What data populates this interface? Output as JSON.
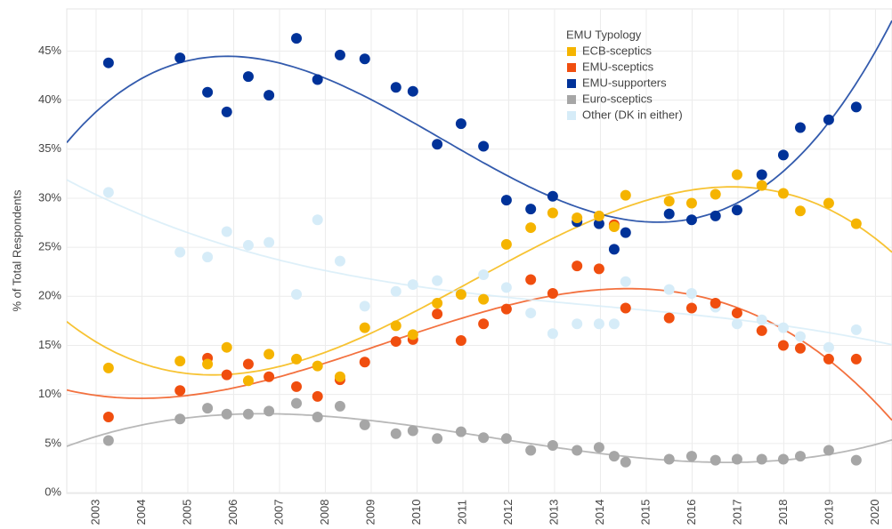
{
  "chart_data": {
    "type": "scatter",
    "y_label": "% of Total Respondents",
    "legend_title": "EMU Typology",
    "legend_position": "top-right",
    "grid": true,
    "trendline": "cubic",
    "x": [
      2003.27,
      2004.83,
      2005.43,
      2005.85,
      2006.32,
      2006.77,
      2007.37,
      2007.83,
      2008.32,
      2008.86,
      2009.54,
      2009.91,
      2010.44,
      2010.96,
      2011.45,
      2011.95,
      2012.48,
      2012.96,
      2013.49,
      2013.97,
      2014.3,
      2014.55,
      2015.5,
      2015.99,
      2016.51,
      2016.98,
      2017.52,
      2017.99,
      2018.36,
      2018.98,
      2019.58
    ],
    "series": [
      {
        "name": "ECB-sceptics",
        "color": "#f5b400",
        "values": [
          12.7,
          13.4,
          13.1,
          14.8,
          11.4,
          14.1,
          13.6,
          12.9,
          11.8,
          16.8,
          17.0,
          16.1,
          19.3,
          20.2,
          19.7,
          25.3,
          27.0,
          28.5,
          28.0,
          28.2,
          27.1,
          30.3,
          29.7,
          29.5,
          30.4,
          32.4,
          31.3,
          30.5,
          28.7,
          29.5,
          27.4
        ]
      },
      {
        "name": "EMU-sceptics",
        "color": "#f04e0f",
        "values": [
          7.7,
          10.4,
          13.7,
          12.0,
          13.1,
          11.8,
          10.8,
          9.8,
          11.5,
          13.3,
          15.4,
          15.6,
          18.2,
          15.5,
          17.2,
          18.7,
          21.7,
          20.3,
          23.1,
          22.8,
          27.3,
          18.8,
          17.8,
          18.8,
          19.3,
          18.3,
          16.5,
          15.0,
          14.7,
          13.6,
          13.6
        ]
      },
      {
        "name": "EMU-supporters",
        "color": "#003299",
        "values": [
          43.8,
          44.3,
          40.8,
          38.8,
          42.4,
          40.5,
          46.3,
          42.1,
          44.6,
          44.2,
          41.3,
          40.9,
          35.5,
          37.6,
          35.3,
          29.8,
          28.9,
          30.2,
          27.6,
          27.4,
          24.8,
          26.5,
          28.4,
          27.8,
          28.2,
          28.8,
          32.4,
          34.4,
          37.2,
          38.0,
          39.3
        ]
      },
      {
        "name": "Euro-sceptics",
        "color": "#a6a6a6",
        "values": [
          5.3,
          7.5,
          8.6,
          8.0,
          8.0,
          8.3,
          9.1,
          7.7,
          8.8,
          6.9,
          6.0,
          6.3,
          5.5,
          6.2,
          5.6,
          5.5,
          4.3,
          4.8,
          4.3,
          4.6,
          3.7,
          3.1,
          3.4,
          3.7,
          3.3,
          3.4,
          3.4,
          3.4,
          3.7,
          4.3,
          3.3
        ]
      },
      {
        "name": "Other (DK in either)",
        "color": "#d6ecf8",
        "values": [
          30.6,
          24.5,
          24.0,
          26.6,
          25.2,
          25.5,
          20.2,
          27.8,
          23.6,
          19.0,
          20.5,
          21.2,
          21.6,
          20.3,
          22.2,
          20.9,
          18.3,
          16.2,
          17.2,
          17.2,
          17.2,
          21.5,
          20.7,
          20.3,
          18.9,
          17.2,
          17.6,
          16.8,
          15.9,
          14.8,
          16.6
        ]
      }
    ],
    "xlim": [
      2002.36,
      2020.36
    ],
    "xticks": [
      2003,
      2004,
      2005,
      2006,
      2007,
      2008,
      2009,
      2010,
      2011,
      2012,
      2013,
      2014,
      2015,
      2016,
      2017,
      2018,
      2019,
      2020
    ],
    "ylim": [
      0,
      49.3
    ],
    "yticks": [
      {
        "value": 0,
        "label": "0%"
      },
      {
        "value": 5,
        "label": "5%"
      },
      {
        "value": 10,
        "label": "10%"
      },
      {
        "value": 15,
        "label": "15%"
      },
      {
        "value": 20,
        "label": "20%"
      },
      {
        "value": 25,
        "label": "25%"
      },
      {
        "value": 30,
        "label": "30%"
      },
      {
        "value": 35,
        "label": "35%"
      },
      {
        "value": 40,
        "label": "40%"
      },
      {
        "value": 45,
        "label": "45%"
      }
    ]
  }
}
